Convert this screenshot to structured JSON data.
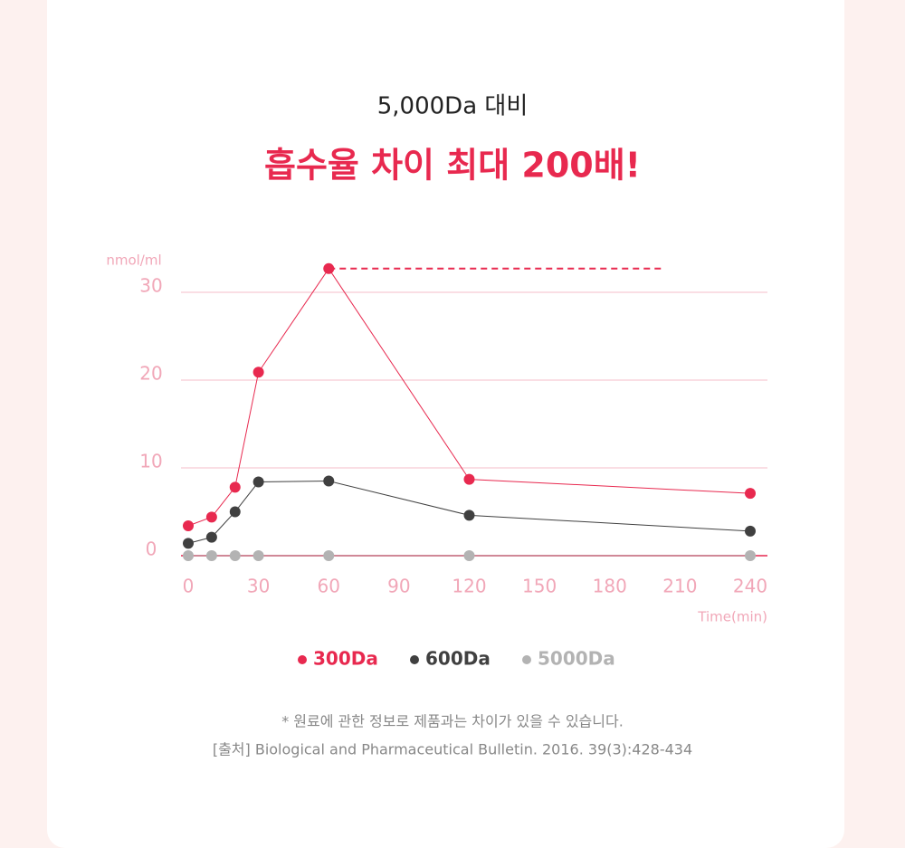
{
  "chart_data": {
    "type": "line",
    "subtitle": "5,000Da 대비",
    "title": "흡수율 차이 최대 200배!",
    "y_label": "nmol/ml",
    "x_label": "Time(min)",
    "x": [
      0,
      10,
      20,
      30,
      60,
      120,
      240
    ],
    "series": [
      {
        "name": "300Da",
        "color": "#e8294f",
        "values": [
          3.4,
          4.4,
          7.8,
          20.9,
          32.7,
          8.7,
          7.1
        ]
      },
      {
        "name": "600Da",
        "color": "#404040",
        "values": [
          1.4,
          2.1,
          5.0,
          8.4,
          8.5,
          4.6,
          2.8
        ]
      },
      {
        "name": "5000Da",
        "color": "#b3b3b3",
        "values": [
          0,
          0,
          0,
          0,
          0,
          0,
          0
        ]
      }
    ],
    "xlim": [
      0,
      240
    ],
    "xticks": [
      0,
      30,
      60,
      90,
      120,
      150,
      180,
      210,
      240
    ],
    "ylim": [
      0,
      35
    ],
    "yticks": [
      0,
      10,
      20,
      30
    ],
    "grid": true,
    "notes": [
      "* 원료에 관한 정보로 제품과는 차이가 있을 수 있습니다.",
      "[출처] Biological and Pharmaceutical Bulletin. 2016. 39(3):428-434"
    ]
  }
}
